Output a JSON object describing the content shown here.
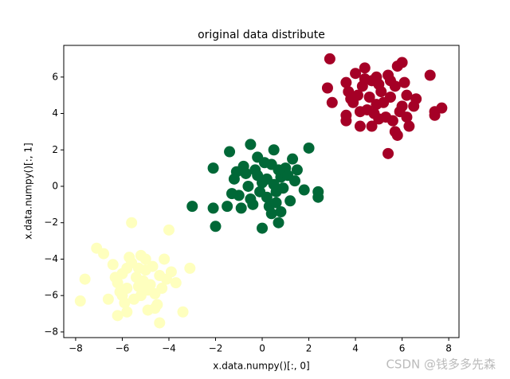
{
  "chart_data": {
    "type": "scatter",
    "title": "original data distribute",
    "x_label": "x.data.numpy()[:, 0]",
    "y_label": "x.data.numpy()[:, 1]",
    "xlim": [
      -8.51,
      8.44
    ],
    "ylim": [
      -8.31,
      7.74
    ],
    "xticks": [
      {
        "value": -8,
        "label": "−8"
      },
      {
        "value": -6,
        "label": "−6"
      },
      {
        "value": -4,
        "label": "−4"
      },
      {
        "value": -2,
        "label": "−2"
      },
      0,
      2,
      4,
      6,
      8
    ],
    "yticks": [
      {
        "value": -8,
        "label": "−8"
      },
      {
        "value": -6,
        "label": "−6"
      },
      {
        "value": -4,
        "label": "−4"
      },
      {
        "value": -2,
        "label": "−2"
      },
      0,
      2,
      4,
      6
    ],
    "series": [
      {
        "color": "#a50026",
        "x": [
          2.9,
          2.8,
          3.0,
          3.6,
          3.6,
          4.2,
          5.4,
          5.8,
          5.7,
          6.3,
          7.4,
          7.7,
          7.4,
          7.2,
          6.0,
          5.8,
          4.4,
          4.0,
          3.6,
          6.6,
          6.5,
          3.9,
          4.1,
          4.3,
          4.5,
          4.7,
          4.9,
          5.1,
          5.3,
          5.5,
          5.7,
          5.9,
          6.1,
          4.6,
          4.8,
          5.0,
          5.2,
          5.4,
          5.6,
          4.2,
          4.4,
          6.2,
          6.0,
          5.0,
          4.7,
          3.7,
          3.8,
          5.5,
          6.2,
          4.9
        ],
        "y": [
          7.0,
          5.4,
          4.6,
          3.9,
          3.6,
          3.3,
          1.8,
          2.8,
          3.0,
          3.3,
          3.9,
          4.3,
          4.1,
          6.1,
          6.8,
          6.6,
          6.5,
          6.2,
          5.7,
          4.8,
          4.4,
          4.6,
          5.0,
          5.5,
          4.2,
          5.8,
          4.5,
          5.2,
          3.8,
          4.9,
          5.5,
          4.1,
          5.7,
          4.9,
          4.0,
          5.6,
          4.6,
          6.1,
          3.6,
          4.1,
          5.9,
          5.0,
          4.4,
          3.7,
          3.3,
          5.2,
          4.8,
          5.8,
          3.8,
          6.0
        ]
      },
      {
        "color": "#006837",
        "x": [
          -3.0,
          -2.0,
          -2.1,
          -2.1,
          -1.4,
          -1.5,
          -0.5,
          0.0,
          0.7,
          0.8,
          2.0,
          2.4,
          2.4,
          1.8,
          0.5,
          1.3,
          -1.2,
          -1.0,
          -0.8,
          -0.6,
          -0.4,
          -0.2,
          0.0,
          0.2,
          0.4,
          0.6,
          0.8,
          1.0,
          1.2,
          -0.9,
          -0.3,
          0.3,
          0.9,
          -0.7,
          0.1,
          0.5,
          1.4,
          -1.3,
          -0.1,
          0.7,
          1.1,
          -0.5,
          0.2,
          -1.1,
          0.6,
          1.5,
          -0.2,
          0.4
        ],
        "y": [
          -1.1,
          -2.2,
          -1.2,
          1.0,
          1.9,
          -1.1,
          2.3,
          -2.3,
          -2.0,
          -1.4,
          2.1,
          -0.6,
          -0.3,
          -0.2,
          2.0,
          1.5,
          0.4,
          -0.5,
          1.1,
          0.0,
          -1.0,
          0.6,
          0.2,
          -0.6,
          1.2,
          -0.3,
          0.5,
          1.0,
          -0.8,
          -1.2,
          0.9,
          -1.1,
          -0.1,
          0.7,
          1.3,
          0.1,
          0.3,
          -0.4,
          -0.3,
          0.9,
          0.6,
          -0.7,
          0.4,
          0.8,
          -0.9,
          0.9,
          1.6,
          -1.5
        ]
      },
      {
        "color": "#feffbe",
        "x": [
          -7.8,
          -7.6,
          -7.1,
          -5.6,
          -4.0,
          -3.1,
          -3.4,
          -4.4,
          -5.8,
          -6.2,
          -4.9,
          -6.6,
          -6.8,
          -5.2,
          -4.2,
          -3.7,
          -6.0,
          -5.8,
          -5.6,
          -5.4,
          -5.2,
          -5.0,
          -4.8,
          -4.6,
          -4.4,
          -6.2,
          -6.4,
          -5.9,
          -5.3,
          -4.9,
          -4.5,
          -5.7,
          -5.1,
          -6.1,
          -4.7,
          -5.5,
          -4.3,
          -5.0,
          -6.3,
          -3.9,
          -5.8,
          -4.6,
          -5.3,
          -6.0,
          -4.1
        ],
        "y": [
          -6.3,
          -5.1,
          -3.4,
          -2.0,
          -2.4,
          -4.5,
          -6.9,
          -7.5,
          -6.9,
          -7.1,
          -6.8,
          -6.2,
          -3.7,
          -3.8,
          -4.0,
          -5.3,
          -4.8,
          -5.6,
          -4.2,
          -5.0,
          -6.0,
          -4.6,
          -5.4,
          -5.9,
          -4.9,
          -5.3,
          -4.3,
          -6.4,
          -4.5,
          -5.7,
          -6.5,
          -3.9,
          -5.2,
          -5.8,
          -4.4,
          -6.2,
          -5.6,
          -4.0,
          -5.0,
          -4.7,
          -4.5,
          -6.7,
          -5.5,
          -6.0,
          -5.1
        ]
      }
    ],
    "watermark": "CSDN @钱多多先森"
  }
}
